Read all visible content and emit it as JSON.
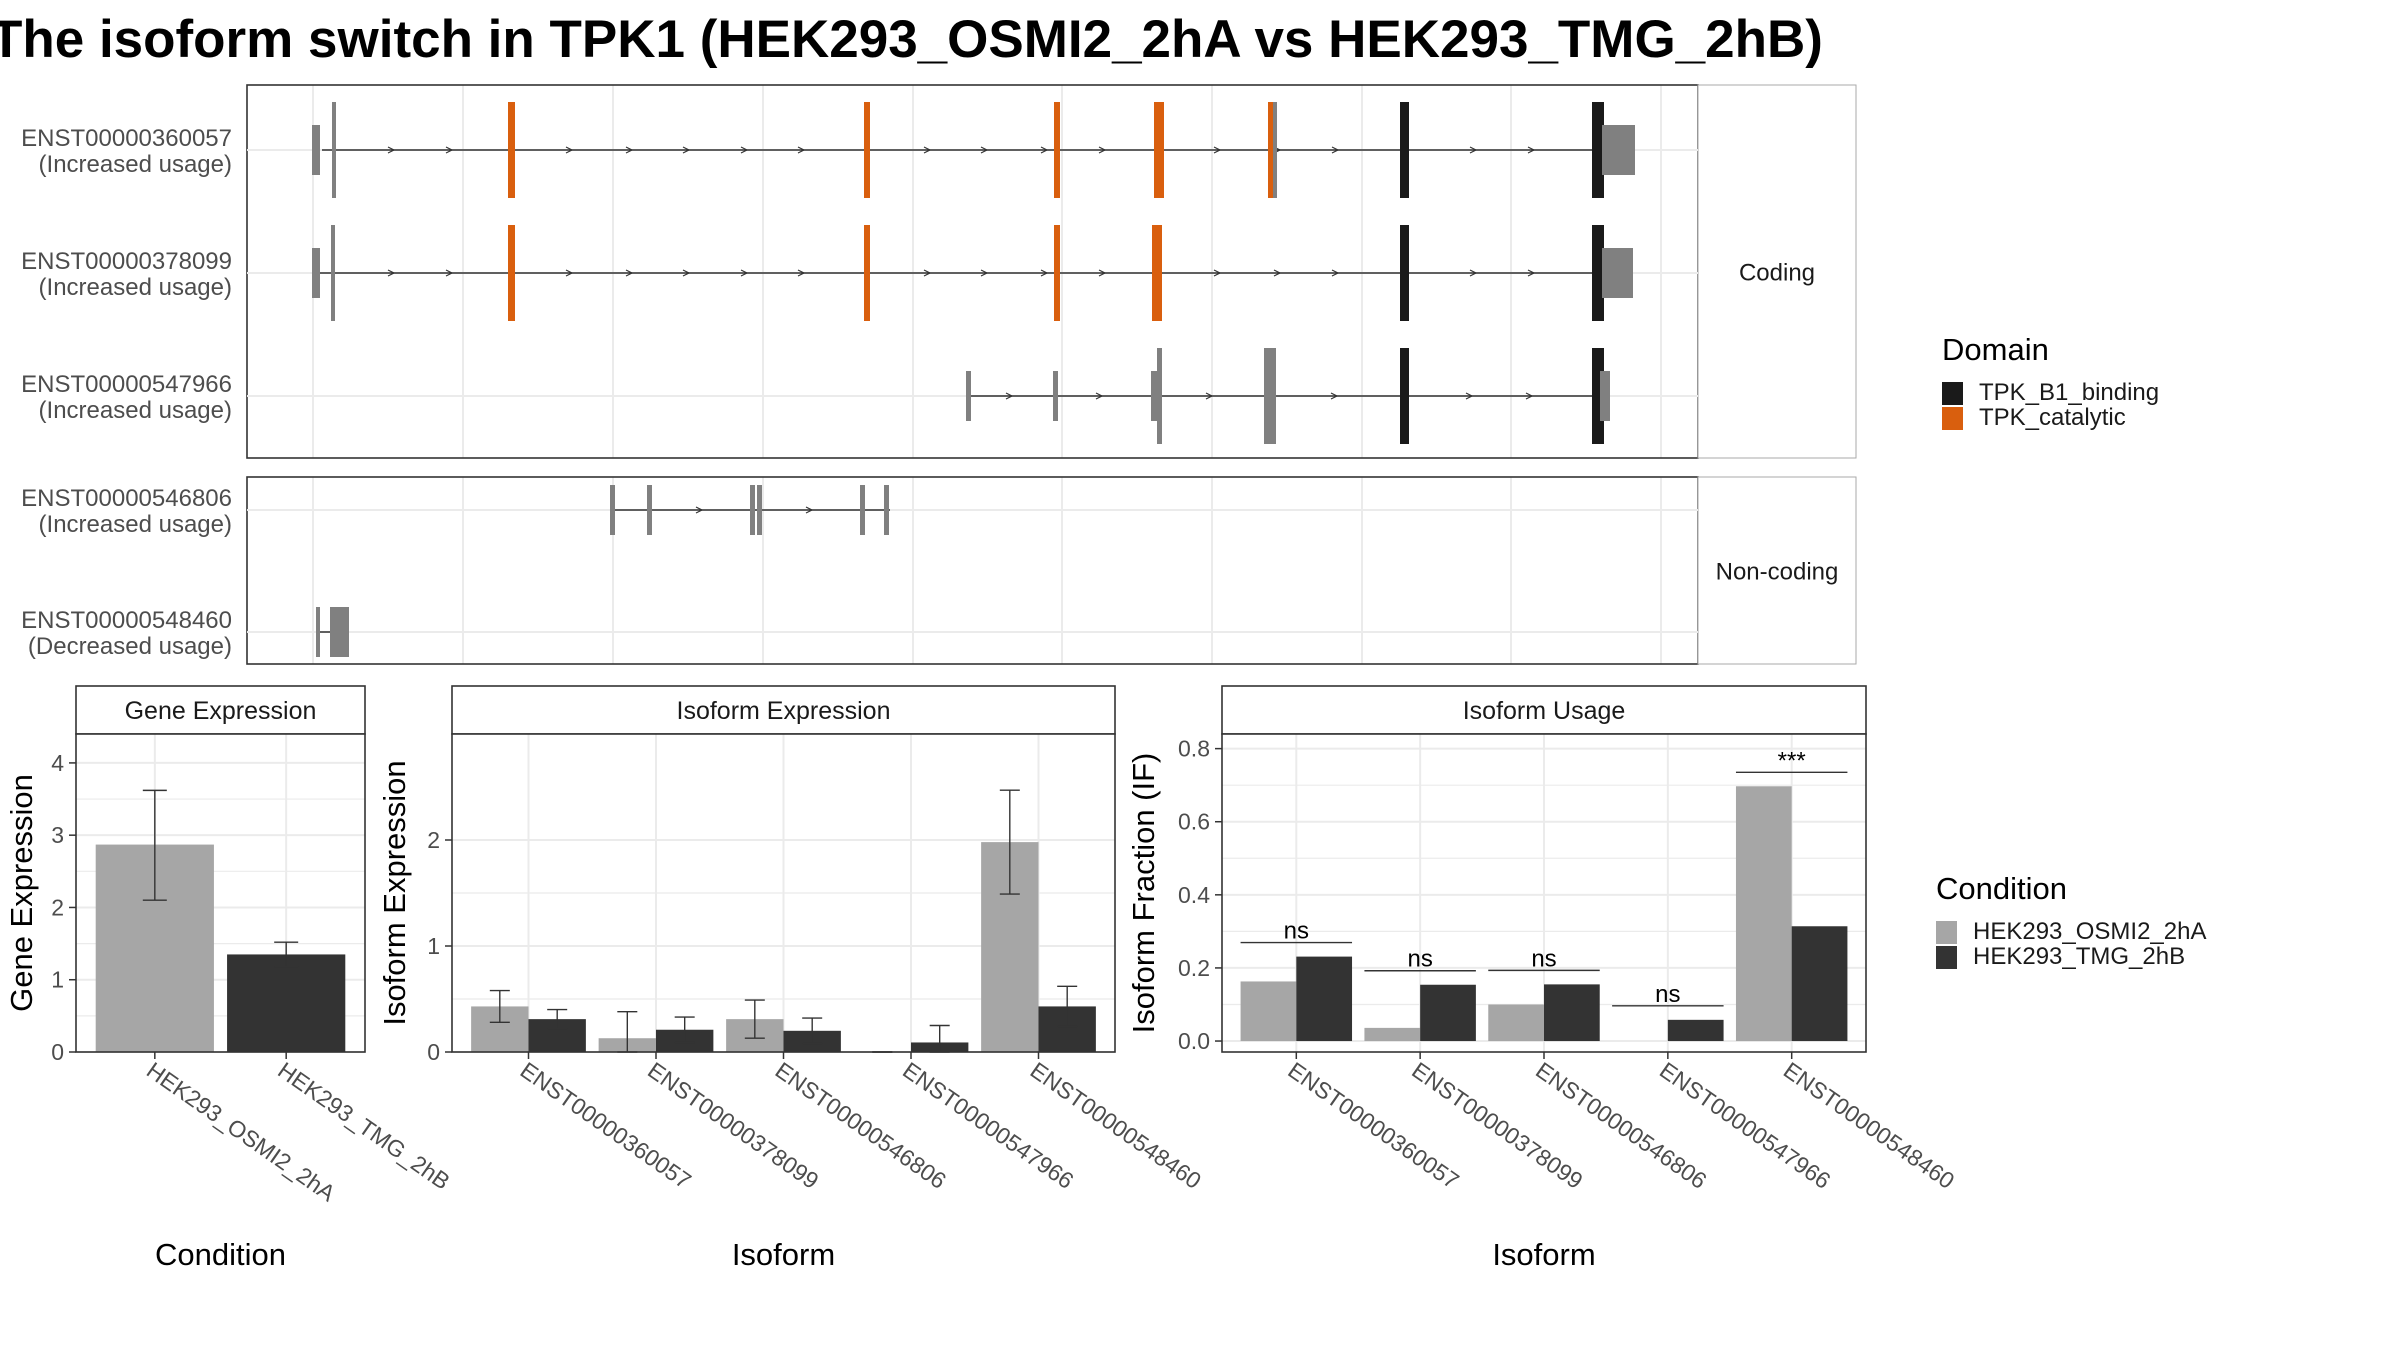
{
  "title": "The isoform switch in TPK1 (HEK293_OSMI2_2hA vs HEK293_TMG_2hB)",
  "colors": {
    "tpk_b1_binding": "#1a1a1a",
    "tpk_catalytic": "#d95f0e",
    "exon": "#808080",
    "cond_a": "#a6a6a6",
    "cond_b": "#333333"
  },
  "structure": {
    "coding_label": "Coding",
    "noncoding_label": "Non-coding",
    "coding_rows": [
      {
        "id": "ENST00000360057",
        "usage": "(Increased usage)"
      },
      {
        "id": "ENST00000378099",
        "usage": "(Increased usage)"
      },
      {
        "id": "ENST00000547966",
        "usage": "(Increased usage)"
      }
    ],
    "noncoding_rows": [
      {
        "id": "ENST00000546806",
        "usage": "(Increased usage)"
      },
      {
        "id": "ENST00000548460",
        "usage": "(Decreased usage)"
      }
    ]
  },
  "domain_legend": {
    "title": "Domain",
    "items": [
      {
        "label": "TPK_B1_binding",
        "color": "#1a1a1a"
      },
      {
        "label": "TPK_catalytic",
        "color": "#d95f0e"
      }
    ]
  },
  "condition_legend": {
    "title": "Condition",
    "items": [
      {
        "label": "HEK293_OSMI2_2hA",
        "color": "#a6a6a6"
      },
      {
        "label": "HEK293_TMG_2hB",
        "color": "#333333"
      }
    ]
  },
  "chart_data": [
    {
      "type": "bar",
      "title": "Gene Expression",
      "xlabel": "Condition",
      "ylabel": "Gene Expression",
      "categories": [
        "HEK293_OSMI2_2hA",
        "HEK293_TMG_2hB"
      ],
      "values": [
        2.87,
        1.35
      ],
      "error": [
        [
          2.1,
          3.62
        ],
        [
          1.18,
          1.52
        ]
      ],
      "ylim": [
        0,
        4.4
      ],
      "yticks": [
        0,
        1,
        2,
        3,
        4
      ],
      "grid": true
    },
    {
      "type": "bar",
      "title": "Isoform Expression",
      "xlabel": "Isoform",
      "ylabel": "Isoform Expression",
      "categories": [
        "ENST00000360057",
        "ENST00000378099",
        "ENST00000546806",
        "ENST00000547966",
        "ENST00000548460"
      ],
      "series": [
        {
          "name": "HEK293_OSMI2_2hA",
          "values": [
            0.43,
            0.13,
            0.31,
            0.0,
            1.98
          ],
          "error": [
            [
              0.28,
              0.58
            ],
            [
              0.0,
              0.38
            ],
            [
              0.13,
              0.49
            ],
            [
              0.0,
              0.0
            ],
            [
              1.49,
              2.47
            ]
          ]
        },
        {
          "name": "HEK293_TMG_2hB",
          "values": [
            0.31,
            0.21,
            0.2,
            0.09,
            0.43
          ],
          "error": [
            [
              0.22,
              0.4
            ],
            [
              0.09,
              0.33
            ],
            [
              0.08,
              0.32
            ],
            [
              0.0,
              0.25
            ],
            [
              0.24,
              0.62
            ]
          ]
        }
      ],
      "ylim": [
        0,
        3.0
      ],
      "yticks": [
        0,
        1,
        2
      ],
      "grid": true
    },
    {
      "type": "bar",
      "title": "Isoform Usage",
      "xlabel": "Isoform",
      "ylabel": "Isoform Fraction (IF)",
      "categories": [
        "ENST00000360057",
        "ENST00000378099",
        "ENST00000546806",
        "ENST00000547966",
        "ENST00000548460"
      ],
      "series": [
        {
          "name": "HEK293_OSMI2_2hA",
          "values": [
            0.163,
            0.036,
            0.1,
            0.0,
            0.697
          ]
        },
        {
          "name": "HEK293_TMG_2hB",
          "values": [
            0.231,
            0.154,
            0.155,
            0.058,
            0.314
          ]
        }
      ],
      "annotations": [
        "ns",
        "ns",
        "ns",
        "ns",
        "***"
      ],
      "ylim": [
        -0.03,
        0.84
      ],
      "yticks": [
        0.0,
        0.2,
        0.4,
        0.6,
        0.8
      ],
      "grid": true
    }
  ]
}
